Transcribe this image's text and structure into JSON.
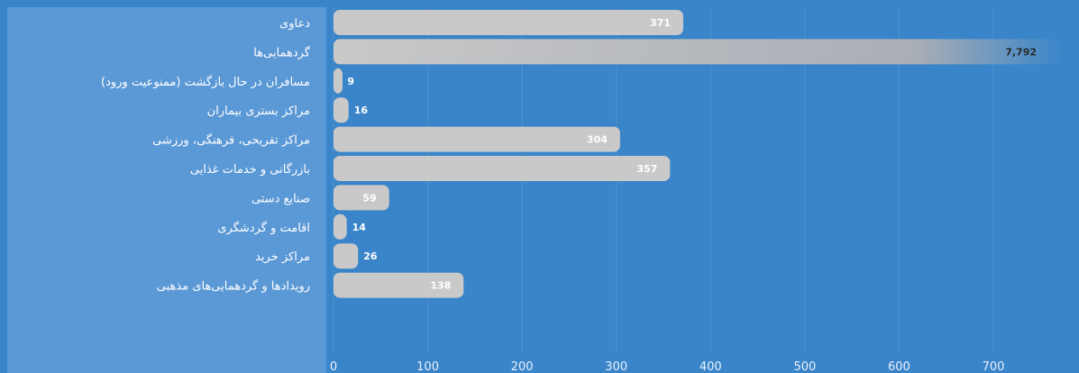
{
  "chart_data": {
    "type": "bar",
    "orientation": "horizontal",
    "categories": [
      "دعاوی",
      "گردهمایی‌ها",
      "مسافران در حال بازگشت (ممنوعیت ورود)",
      "مراکز بستری بیماران",
      "مراکز تفریحی، فرهنگی، ورزشی",
      "بازرگانی و خدمات غذایی",
      "صنایع دستی",
      "اقامت و گردشگری",
      "مراکز خرید",
      "رویدادها و گردهمایی‌های مذهبی"
    ],
    "values": [
      371,
      7792,
      9,
      16,
      304,
      357,
      59,
      14,
      26,
      138
    ],
    "value_labels": [
      "371",
      "7,792",
      "9",
      "16",
      "304",
      "357",
      "59",
      "14",
      "26",
      "138"
    ],
    "xticks": [
      "0",
      "100",
      "200",
      "300",
      "400",
      "500",
      "600",
      "700"
    ],
    "xlim": [
      0,
      770
    ],
    "truncated_bar_note": "",
    "title": "",
    "xlabel": "",
    "ylabel": "",
    "grid": true,
    "colors": {
      "background": "#3a85c9",
      "label_panel": "#5a98d6",
      "bar": "#c9c9c9",
      "bar_faded_end": "#3a85c9",
      "text": "#ffffff"
    }
  }
}
